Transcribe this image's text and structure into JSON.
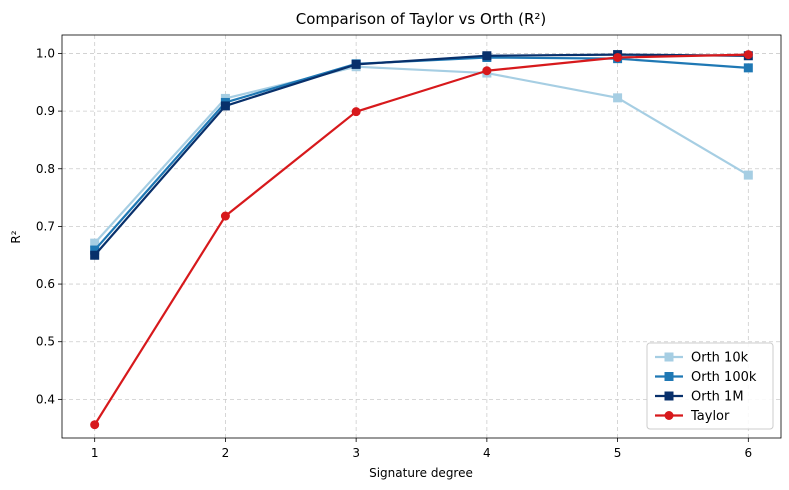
{
  "chart_data": {
    "type": "line",
    "title": "Comparison of Taylor vs Orth (R²)",
    "xlabel": "Signature degree",
    "ylabel": "R²",
    "x": [
      1,
      2,
      3,
      4,
      5,
      6
    ],
    "xlim": [
      0.75,
      6.25
    ],
    "ylim": [
      0.333,
      1.032
    ],
    "yticks": [
      "0.4",
      "0.5",
      "0.6",
      "0.7",
      "0.8",
      "0.9",
      "1.0"
    ],
    "xticks": [
      "1",
      "2",
      "3",
      "4",
      "5",
      "6"
    ],
    "grid": true,
    "legend_position": "lower-right",
    "series": [
      {
        "name": "Orth 10k",
        "color": "#a6cee3",
        "marker": "square",
        "values": [
          0.671,
          0.922,
          0.977,
          0.966,
          0.923,
          0.789
        ]
      },
      {
        "name": "Orth 100k",
        "color": "#1f78b4",
        "marker": "square",
        "values": [
          0.659,
          0.915,
          0.982,
          0.993,
          0.991,
          0.975
        ]
      },
      {
        "name": "Orth 1M",
        "color": "#08306b",
        "marker": "square",
        "values": [
          0.65,
          0.909,
          0.981,
          0.996,
          0.998,
          0.996
        ]
      },
      {
        "name": "Taylor",
        "color": "#d7191c",
        "marker": "circle",
        "values": [
          0.356,
          0.718,
          0.899,
          0.97,
          0.993,
          0.998
        ]
      }
    ]
  }
}
